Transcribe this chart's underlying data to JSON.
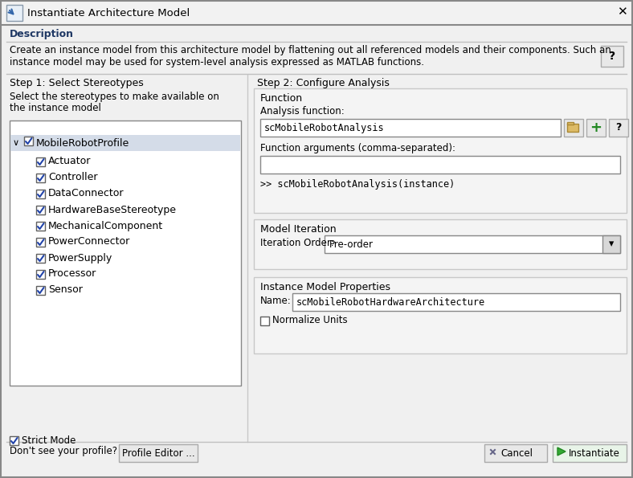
{
  "title": "Instantiate Architecture Model",
  "bg_color": "#f0f0f0",
  "white": "#ffffff",
  "tree_items": [
    {
      "label": "MobileRobotProfile",
      "level": 0,
      "checked": true,
      "selected": true
    },
    {
      "label": "Actuator",
      "level": 1,
      "checked": true
    },
    {
      "label": "Controller",
      "level": 1,
      "checked": true
    },
    {
      "label": "DataConnector",
      "level": 1,
      "checked": true
    },
    {
      "label": "HardwareBaseStereotype",
      "level": 1,
      "checked": true
    },
    {
      "label": "MechanicalComponent",
      "level": 1,
      "checked": true
    },
    {
      "label": "PowerConnector",
      "level": 1,
      "checked": true
    },
    {
      "label": "PowerSupply",
      "level": 1,
      "checked": true
    },
    {
      "label": "Processor",
      "level": 1,
      "checked": true
    },
    {
      "label": "Sensor",
      "level": 1,
      "checked": true
    }
  ],
  "step1_label": "Step 1: Select Stereotypes",
  "step1_sub_line1": "Select the stereotypes to make available on",
  "step1_sub_line2": "the instance model",
  "step2_label": "Step 2: Configure Analysis",
  "function_label": "Function",
  "analysis_function_label": "Analysis function:",
  "analysis_function_value": "scMobileRobotAnalysis",
  "function_args_label": "Function arguments (comma-separated):",
  "function_call_preview": ">> scMobileRobotAnalysis(instance)",
  "model_iteration_label": "Model Iteration",
  "iteration_order_label": "Iteration Order:",
  "iteration_order_value": "Pre-order",
  "instance_model_label": "Instance Model Properties",
  "name_label": "Name:",
  "name_value": "scMobileRobotHardwareArchitecture",
  "strict_mode_label": "Strict Mode",
  "normalize_units_label": "Normalize Units",
  "dont_see": "Don't see your profile?",
  "profile_editor_btn": "Profile Editor ...",
  "cancel_btn": "Cancel",
  "instantiate_btn": "Instantiate",
  "description_line1": "Create an instance model from this architecture model by flattening out all referenced models and their components. Such an",
  "description_line2": "instance model may be used for system-level analysis expressed as MATLAB functions.",
  "description_label": "Description",
  "section_text_color": "#1f3864",
  "dark_text": "#1a1a1a",
  "mono_color": "#1a1a1a",
  "link_color_on": "#0056b3"
}
